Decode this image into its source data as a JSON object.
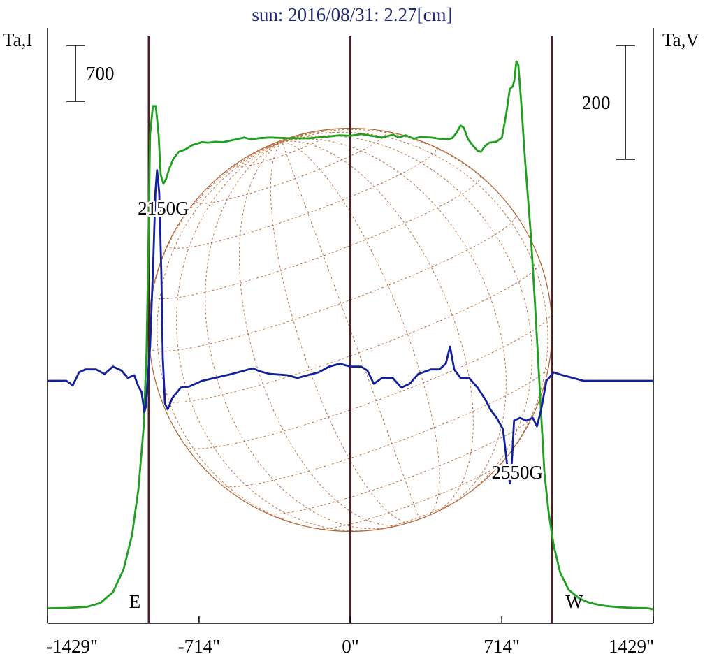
{
  "chart_data": {
    "type": "line",
    "title": "sun: 2016/08/31: 2.27[cm]",
    "left_axis_label": "Ta,I",
    "right_axis_label": "Ta,V",
    "x_ticks": [
      {
        "value": -1429,
        "label": "-1429\""
      },
      {
        "value": -714,
        "label": "-714\""
      },
      {
        "value": 0,
        "label": "0\""
      },
      {
        "value": 714,
        "label": "714\""
      },
      {
        "value": 1429,
        "label": "1429\""
      }
    ],
    "xlim": [
      -1429,
      1429
    ],
    "scale_bars": {
      "left": {
        "label": "700"
      },
      "right": {
        "label": "200"
      }
    },
    "limb_markers": [
      {
        "x": -951,
        "label": "E"
      },
      {
        "x": 0,
        "label": ""
      },
      {
        "x": 951,
        "label": "W"
      }
    ],
    "annotations": [
      {
        "text": "2150G",
        "x": -882,
        "series": "V"
      },
      {
        "text": "2550G",
        "x": 787,
        "series": "V"
      }
    ],
    "series": [
      {
        "key": "I",
        "color": "#1fa01f",
        "points": [
          [
            -1429,
            8
          ],
          [
            -1330,
            12
          ],
          [
            -1240,
            22
          ],
          [
            -1180,
            55
          ],
          [
            -1120,
            150
          ],
          [
            -1070,
            350
          ],
          [
            -1030,
            650
          ],
          [
            -1000,
            1050
          ],
          [
            -975,
            1600
          ],
          [
            -962,
            2250
          ],
          [
            -955,
            2950
          ],
          [
            -945,
            4150
          ],
          [
            -932,
            4400
          ],
          [
            -918,
            4400
          ],
          [
            -905,
            4150
          ],
          [
            -895,
            3800
          ],
          [
            -882,
            3720
          ],
          [
            -870,
            3760
          ],
          [
            -855,
            3850
          ],
          [
            -835,
            3940
          ],
          [
            -810,
            4000
          ],
          [
            -780,
            4020
          ],
          [
            -745,
            4060
          ],
          [
            -700,
            4085
          ],
          [
            -670,
            4080
          ],
          [
            -640,
            4088
          ],
          [
            -600,
            4085
          ],
          [
            -550,
            4105
          ],
          [
            -500,
            4125
          ],
          [
            -470,
            4110
          ],
          [
            -430,
            4120
          ],
          [
            -380,
            4125
          ],
          [
            -300,
            4120
          ],
          [
            -200,
            4118
          ],
          [
            -100,
            4135
          ],
          [
            -50,
            4145
          ],
          [
            0,
            4140
          ],
          [
            50,
            4155
          ],
          [
            100,
            4140
          ],
          [
            150,
            4125
          ],
          [
            200,
            4150
          ],
          [
            230,
            4125
          ],
          [
            260,
            4145
          ],
          [
            300,
            4115
          ],
          [
            330,
            4130
          ],
          [
            380,
            4125
          ],
          [
            420,
            4115
          ],
          [
            460,
            4110
          ],
          [
            480,
            4120
          ],
          [
            500,
            4165
          ],
          [
            520,
            4230
          ],
          [
            535,
            4210
          ],
          [
            555,
            4110
          ],
          [
            580,
            4050
          ],
          [
            600,
            4010
          ],
          [
            615,
            4000
          ],
          [
            635,
            4050
          ],
          [
            655,
            4080
          ],
          [
            690,
            4090
          ],
          [
            715,
            4125
          ],
          [
            735,
            4330
          ],
          [
            752,
            4550
          ],
          [
            765,
            4570
          ],
          [
            773,
            4620
          ],
          [
            783,
            4790
          ],
          [
            792,
            4760
          ],
          [
            805,
            4450
          ],
          [
            825,
            3900
          ],
          [
            850,
            3300
          ],
          [
            870,
            2700
          ],
          [
            885,
            2200
          ],
          [
            900,
            1700
          ],
          [
            915,
            1200
          ],
          [
            935,
            850
          ],
          [
            960,
            550
          ],
          [
            990,
            320
          ],
          [
            1030,
            170
          ],
          [
            1080,
            95
          ],
          [
            1130,
            55
          ],
          [
            1200,
            30
          ],
          [
            1270,
            18
          ],
          [
            1330,
            12
          ],
          [
            1400,
            10
          ],
          [
            1429,
            0
          ]
        ]
      },
      {
        "key": "V",
        "color": "#12209c",
        "points": [
          [
            -1429,
            0
          ],
          [
            -1380,
            0
          ],
          [
            -1340,
            0
          ],
          [
            -1310,
            -8
          ],
          [
            -1280,
            15
          ],
          [
            -1250,
            20
          ],
          [
            -1200,
            20
          ],
          [
            -1160,
            12
          ],
          [
            -1120,
            25
          ],
          [
            -1080,
            18
          ],
          [
            -1050,
            5
          ],
          [
            -1020,
            10
          ],
          [
            -1000,
            -10
          ],
          [
            -985,
            -20
          ],
          [
            -972,
            -55
          ],
          [
            -965,
            -45
          ],
          [
            -955,
            10
          ],
          [
            -945,
            60
          ],
          [
            -930,
            210
          ],
          [
            -920,
            330
          ],
          [
            -912,
            370
          ],
          [
            -902,
            330
          ],
          [
            -892,
            190
          ],
          [
            -885,
            40
          ],
          [
            -875,
            -40
          ],
          [
            -862,
            -50
          ],
          [
            -840,
            -30
          ],
          [
            -800,
            -12
          ],
          [
            -760,
            -10
          ],
          [
            -700,
            0
          ],
          [
            -640,
            5
          ],
          [
            -560,
            12
          ],
          [
            -500,
            18
          ],
          [
            -460,
            22
          ],
          [
            -430,
            17
          ],
          [
            -380,
            12
          ],
          [
            -300,
            10
          ],
          [
            -250,
            5
          ],
          [
            -150,
            15
          ],
          [
            -100,
            25
          ],
          [
            -50,
            30
          ],
          [
            0,
            25
          ],
          [
            50,
            25
          ],
          [
            80,
            18
          ],
          [
            110,
            -5
          ],
          [
            150,
            5
          ],
          [
            200,
            5
          ],
          [
            240,
            -12
          ],
          [
            280,
            -5
          ],
          [
            320,
            12
          ],
          [
            380,
            20
          ],
          [
            420,
            20
          ],
          [
            450,
            30
          ],
          [
            470,
            60
          ],
          [
            490,
            20
          ],
          [
            520,
            5
          ],
          [
            560,
            5
          ],
          [
            600,
            -12
          ],
          [
            640,
            -35
          ],
          [
            660,
            -50
          ],
          [
            690,
            -65
          ],
          [
            720,
            -85
          ],
          [
            740,
            -150
          ],
          [
            752,
            -180
          ],
          [
            762,
            -140
          ],
          [
            772,
            -70
          ],
          [
            800,
            -65
          ],
          [
            830,
            -70
          ],
          [
            860,
            -65
          ],
          [
            880,
            -80
          ],
          [
            900,
            -50
          ],
          [
            925,
            0
          ],
          [
            960,
            15
          ],
          [
            1000,
            10
          ],
          [
            1050,
            5
          ],
          [
            1100,
            0
          ],
          [
            1200,
            0
          ],
          [
            1280,
            0
          ],
          [
            1350,
            0
          ],
          [
            1429,
            0
          ]
        ]
      }
    ]
  }
}
